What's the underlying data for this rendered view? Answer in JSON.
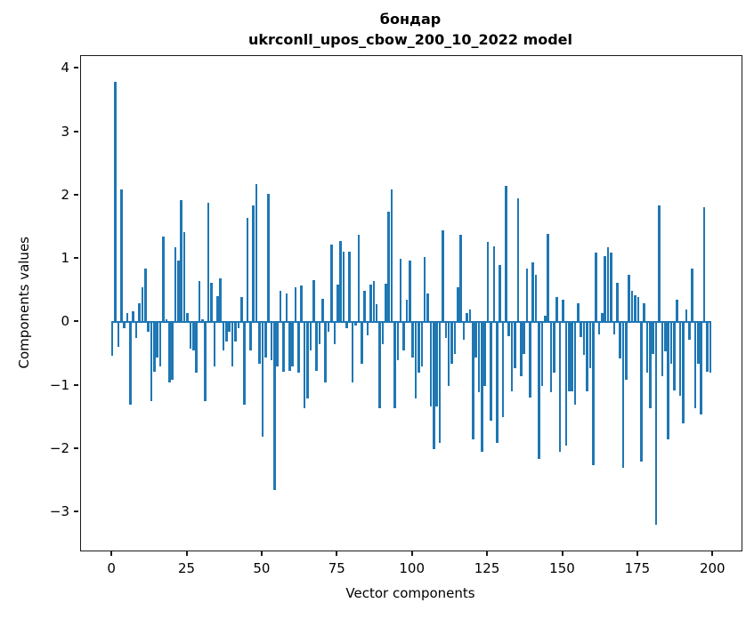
{
  "figure": {
    "title_line1": "бондар",
    "title_line2": "ukrconll_upos_cbow_200_10_2022 model",
    "background": "#ffffff",
    "spine_color": "#1a1a1a"
  },
  "chart_data": {
    "type": "bar",
    "title": "бондар\nukrconll_upos_cbow_200_10_2022 model",
    "xlabel": "Vector components",
    "ylabel": "Components values",
    "bar_color": "#1f77b4",
    "bar_width": 0.8,
    "grid": false,
    "legend": null,
    "x_note": "x = component index 0..199",
    "xlim": [
      -10.4,
      209.4
    ],
    "ylim": [
      -3.6,
      4.2
    ],
    "x_ticks": [
      0,
      25,
      50,
      75,
      100,
      125,
      150,
      175,
      200
    ],
    "y_ticks": [
      -3,
      -2,
      -1,
      0,
      1,
      2,
      3,
      4
    ],
    "values": [
      -0.53,
      3.8,
      -0.39,
      2.1,
      -0.09,
      0.15,
      -1.3,
      0.18,
      -0.25,
      0.3,
      0.55,
      0.85,
      -0.15,
      -1.25,
      -0.78,
      -0.55,
      -0.7,
      1.35,
      0.05,
      -0.95,
      -0.9,
      1.18,
      0.97,
      1.93,
      1.43,
      0.15,
      -0.42,
      -0.45,
      -0.8,
      0.65,
      0.05,
      -1.25,
      1.88,
      0.62,
      -0.69,
      0.41,
      0.7,
      -0.45,
      -0.3,
      -0.15,
      -0.7,
      -0.3,
      -0.1,
      0.4,
      -1.3,
      1.65,
      -0.45,
      1.85,
      2.18,
      -0.65,
      -1.8,
      -0.55,
      2.02,
      -0.6,
      -2.65,
      -0.7,
      0.5,
      -0.78,
      0.45,
      -0.76,
      -0.7,
      0.55,
      -0.8,
      0.58,
      -1.35,
      -1.2,
      -0.45,
      0.66,
      -0.76,
      -0.35,
      0.37,
      -0.95,
      -0.15,
      1.22,
      -0.35,
      0.6,
      1.28,
      1.12,
      -0.1,
      1.11,
      -0.95,
      -0.05,
      1.38,
      -0.66,
      0.5,
      -0.2,
      0.59,
      0.65,
      0.28,
      -1.35,
      -0.35,
      0.61,
      1.75,
      2.1,
      -1.35,
      -0.6,
      1.0,
      -0.45,
      0.35,
      0.97,
      -0.55,
      -1.2,
      -0.8,
      -0.69,
      1.03,
      0.45,
      -1.33,
      -2.0,
      -1.33,
      -1.9,
      1.45,
      -0.25,
      -1.0,
      -0.66,
      -0.5,
      0.55,
      1.38,
      -0.28,
      0.15,
      0.2,
      -1.85,
      -0.55,
      -1.1,
      -2.05,
      -1.0,
      1.27,
      -1.55,
      1.2,
      -1.9,
      0.9,
      -1.5,
      2.15,
      -0.22,
      -1.09,
      -0.73,
      1.95,
      -0.85,
      -0.5,
      0.85,
      -1.19,
      0.95,
      0.75,
      -2.15,
      -1.0,
      0.1,
      1.4,
      -1.1,
      -0.8,
      0.4,
      -2.05,
      0.35,
      -1.95,
      -1.09,
      -1.09,
      -1.3,
      0.3,
      -0.23,
      -0.52,
      -1.09,
      -0.73,
      -2.25,
      1.1,
      -0.19,
      0.15,
      1.05,
      1.18,
      1.1,
      -0.19,
      0.62,
      -0.57,
      -2.3,
      -0.9,
      0.75,
      0.5,
      0.43,
      0.4,
      -2.2,
      0.3,
      -0.8,
      -1.35,
      -0.5,
      -3.2,
      1.85,
      -0.85,
      -0.46,
      -1.85,
      -0.66,
      -1.07,
      0.35,
      -1.16,
      -1.6,
      0.2,
      -0.28,
      0.85,
      -1.35,
      -0.66,
      -1.45,
      1.82,
      -0.78,
      -0.8
    ]
  }
}
